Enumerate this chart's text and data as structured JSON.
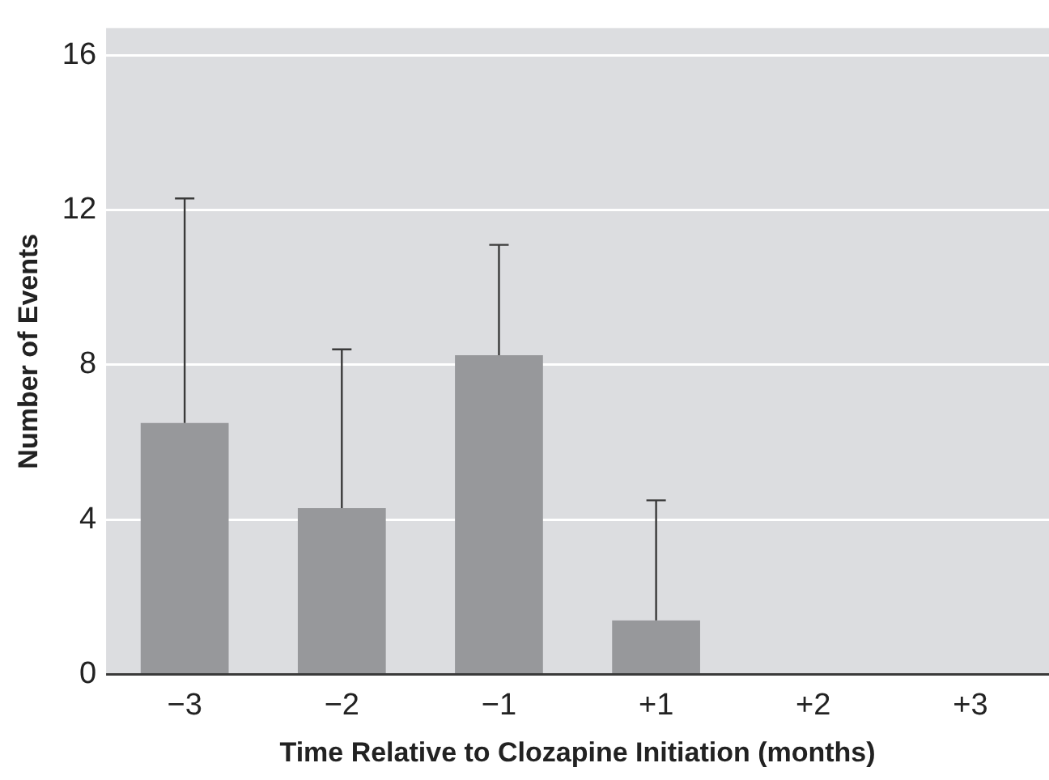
{
  "chart_data": {
    "type": "bar",
    "xlabel": "Time Relative to Clozapine Initiation (months)",
    "ylabel": "Number of Events",
    "categories": [
      "−3",
      "−2",
      "−1",
      "+1",
      "+2",
      "+3"
    ],
    "values": [
      6.5,
      4.3,
      8.25,
      1.4,
      0,
      0
    ],
    "errors": [
      [
        6.5,
        12.3
      ],
      [
        4.3,
        8.4
      ],
      [
        8.25,
        11.1
      ],
      [
        1.4,
        4.5
      ],
      null,
      null
    ],
    "color": "#97989b",
    "ylim": [
      0,
      16.7
    ],
    "yticks": [
      0,
      4,
      8,
      12,
      16
    ],
    "grid": "y",
    "legend": false
  }
}
